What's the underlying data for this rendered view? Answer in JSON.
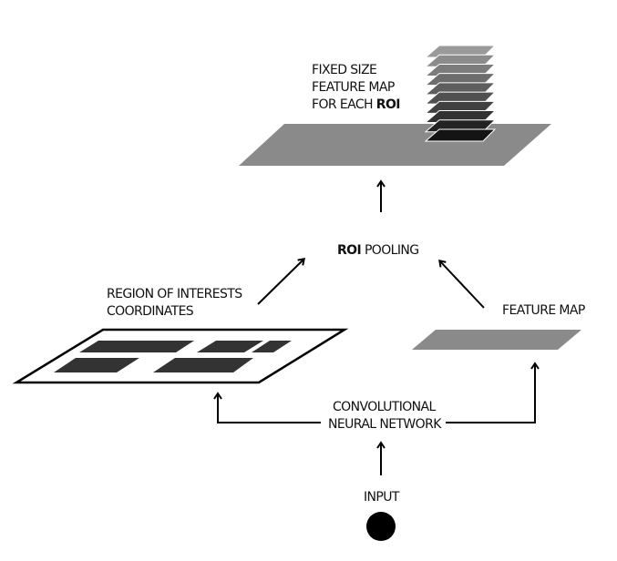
{
  "labels": {
    "fixed_size_line1": "FIXED SIZE",
    "fixed_size_line2": "FEATURE MAP",
    "fixed_size_line3_prefix": "FOR EACH ",
    "fixed_size_line3_bold": "ROI",
    "roi_pooling_bold": "ROI",
    "roi_pooling_rest": " POOLING",
    "region_line1": "REGION OF INTERESTS",
    "region_line2": "COORDINATES",
    "feature_map": "FEATURE MAP",
    "cnn_line1": "CONVOLUTIONAL",
    "cnn_line2": "NEURAL NETWORK",
    "input": "INPUT"
  },
  "colors": {
    "plane_gray": "#8a8a8a",
    "stack_light": "#9a9a9a",
    "stack_dark": "#141414",
    "region_box": "#333333",
    "stroke": "#000000"
  },
  "stack_layers": 10
}
